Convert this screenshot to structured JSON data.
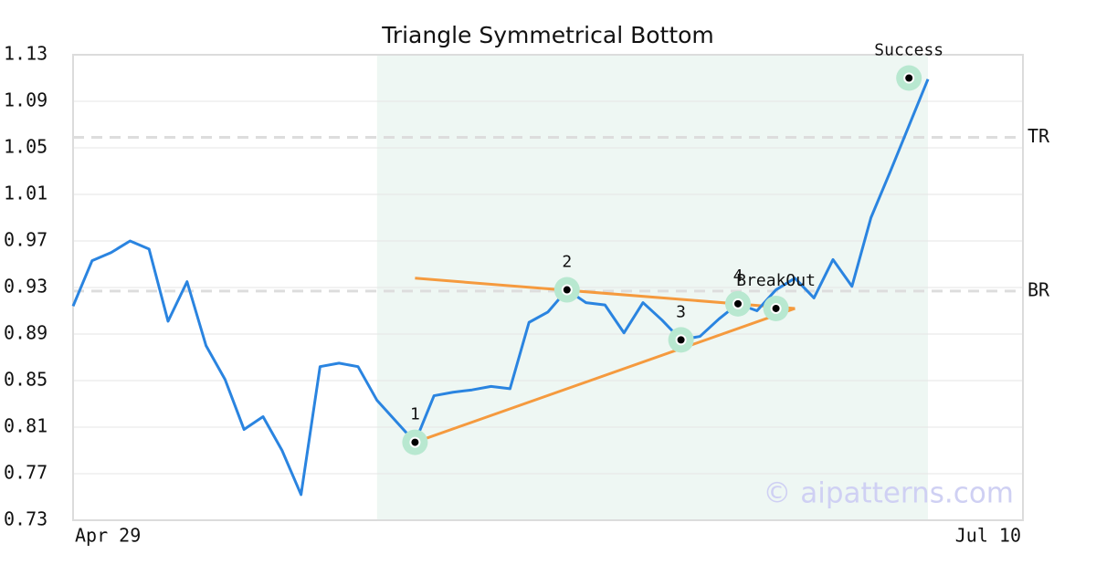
{
  "chart_data": {
    "type": "line",
    "title": "Triangle Symmetrical Bottom",
    "categories": [
      "Apr 29",
      null,
      null,
      null,
      null,
      null,
      null,
      null,
      null,
      null,
      null,
      null,
      null,
      null,
      null,
      null,
      null,
      null,
      null,
      null,
      null,
      null,
      null,
      null,
      null,
      null,
      null,
      null,
      null,
      null,
      null,
      null,
      null,
      null,
      null,
      null,
      null,
      null,
      null,
      null,
      null,
      null,
      null,
      null,
      null,
      null,
      null,
      null,
      null,
      null,
      "Jul 10"
    ],
    "values": [
      0.914,
      0.953,
      0.96,
      0.97,
      0.963,
      0.901,
      0.935,
      0.88,
      0.851,
      0.808,
      0.819,
      0.79,
      0.752,
      0.862,
      0.865,
      0.862,
      0.833,
      0.815,
      0.797,
      0.837,
      0.84,
      0.842,
      0.845,
      0.843,
      0.9,
      0.909,
      0.928,
      0.917,
      0.915,
      0.891,
      0.917,
      0.902,
      0.885,
      0.888,
      0.903,
      0.916,
      0.91,
      0.928,
      0.938,
      0.921,
      0.954,
      0.931,
      0.99,
      1.029,
      1.069,
      1.109,
      null,
      null,
      null,
      null,
      null
    ],
    "color": "#2a84e0",
    "ylim": [
      0.73,
      1.13
    ],
    "yticks": [
      0.73,
      0.77,
      0.81,
      0.85,
      0.89,
      0.93,
      0.97,
      1.01,
      1.05,
      1.09,
      1.13
    ],
    "grid": true,
    "highlight": {
      "start": 16,
      "end": 45,
      "color": "#eef7f3"
    },
    "trend_lines": [
      {
        "x": [
          18,
          38
        ],
        "y": [
          0.938,
          0.912
        ],
        "color": "#f59a3e"
      },
      {
        "x": [
          18,
          38
        ],
        "y": [
          0.797,
          0.912
        ],
        "color": "#f59a3e"
      }
    ],
    "hlines": [
      {
        "label": "TR",
        "y": 1.059
      },
      {
        "label": "BR",
        "y": 0.927
      }
    ],
    "annotations": [
      {
        "label": "1",
        "x": 18,
        "y": 0.797
      },
      {
        "label": "2",
        "x": 26,
        "y": 0.928
      },
      {
        "label": "3",
        "x": 32,
        "y": 0.885
      },
      {
        "label": "4",
        "x": 35,
        "y": 0.916
      },
      {
        "label": "BreakOut",
        "x": 37,
        "y": 0.912
      },
      {
        "label": "Success",
        "x": 44,
        "y": 1.11
      }
    ],
    "watermark": "© aipatterns.com"
  }
}
